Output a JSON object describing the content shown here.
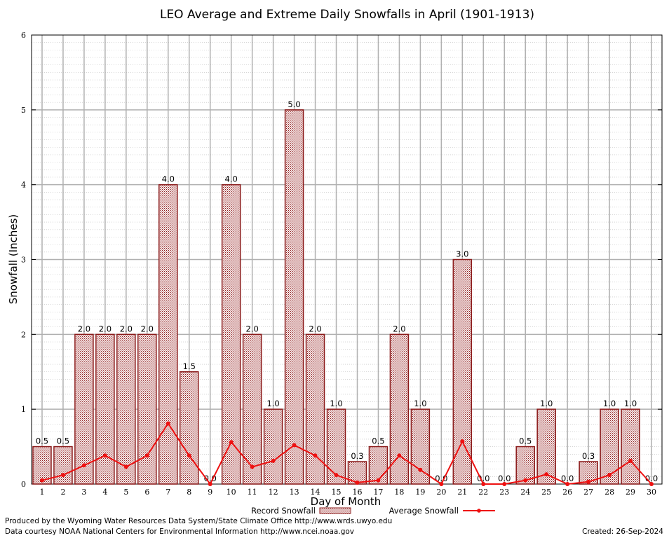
{
  "chart_data": {
    "type": "bar",
    "title": "LEO Average and Extreme Daily Snowfalls in April (1901-1913)",
    "xlabel": "Day of Month",
    "ylabel": "Snowfall (Inches)",
    "ylim": [
      0,
      6
    ],
    "yticks": [
      "0",
      "1",
      "2",
      "3",
      "4",
      "5",
      "6"
    ],
    "grid": true,
    "categories": [
      "1",
      "2",
      "3",
      "4",
      "5",
      "6",
      "7",
      "8",
      "9",
      "10",
      "11",
      "12",
      "13",
      "14",
      "15",
      "16",
      "17",
      "18",
      "19",
      "20",
      "21",
      "22",
      "23",
      "24",
      "25",
      "26",
      "27",
      "28",
      "29",
      "30"
    ],
    "series": [
      {
        "name": "Record Snowfall",
        "kind": "bar",
        "values": [
          0.5,
          0.5,
          2.0,
          2.0,
          2.0,
          2.0,
          4.0,
          1.5,
          0.0,
          4.0,
          2.0,
          1.0,
          5.0,
          2.0,
          1.0,
          0.3,
          0.5,
          2.0,
          1.0,
          0.0,
          3.0,
          0.0,
          0.0,
          0.5,
          1.0,
          0.0,
          0.3,
          1.0,
          1.0,
          0.0
        ],
        "labels": [
          "0.5",
          "0.5",
          "2.0",
          "2.0",
          "2.0",
          "2.0",
          "4.0",
          "1.5",
          "0.0",
          "4.0",
          "2.0",
          "1.0",
          "5.0",
          "2.0",
          "1.0",
          "0.3",
          "0.5",
          "2.0",
          "1.0",
          "0.0",
          "3.0",
          "0.0",
          "0.0",
          "0.5",
          "1.0",
          "0.0",
          "0.3",
          "1.0",
          "1.0",
          "0.0"
        ],
        "color": "#b01c1c"
      },
      {
        "name": "Average Snowfall",
        "kind": "line",
        "values": [
          0.05,
          0.12,
          0.25,
          0.38,
          0.23,
          0.38,
          0.81,
          0.38,
          0.0,
          0.56,
          0.23,
          0.31,
          0.52,
          0.38,
          0.12,
          0.02,
          0.05,
          0.38,
          0.19,
          0.0,
          0.57,
          0.0,
          0.0,
          0.05,
          0.13,
          0.0,
          0.03,
          0.12,
          0.31,
          0.0
        ],
        "color": "#ee1111"
      }
    ],
    "legend": {
      "position": "bottom",
      "entries": [
        "Record Snowfall",
        "Average Snowfall"
      ]
    }
  },
  "footer": {
    "line1": "Produced by the Wyoming Water Resources Data System/State Climate Office http://www.wrds.uwyo.edu",
    "line2": "Data courtesy NOAA National Centers for Environmental Information http://www.ncei.noaa.gov",
    "created": "Created: 26-Sep-2024"
  }
}
